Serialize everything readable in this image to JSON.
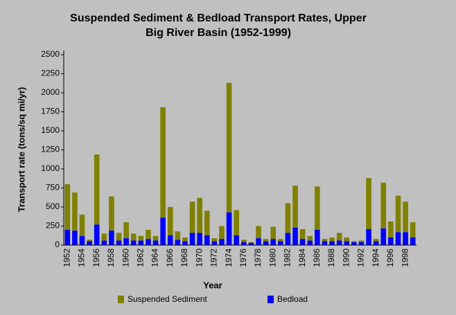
{
  "chart_data": {
    "type": "stacked_bar",
    "title": [
      "Suspended Sediment & Bedload Transport Rates, Upper",
      "Big River Basin (1952-1999)"
    ],
    "x_label": "Year",
    "y_label": "Transport rate (tons/sq mi/yr)",
    "categories": [
      "1952",
      null,
      "1954",
      null,
      "1956",
      null,
      "1958",
      null,
      "1960",
      null,
      "1962",
      null,
      "1964",
      null,
      "1966",
      null,
      "1968",
      null,
      "1970",
      null,
      "1972",
      null,
      "1974",
      null,
      "1976",
      null,
      "1978",
      null,
      "1980",
      null,
      "1982",
      null,
      "1984",
      null,
      "1986",
      null,
      "1988",
      null,
      "1990",
      null,
      "1992",
      null,
      "1994",
      null,
      "1996",
      null,
      "1998",
      null
    ],
    "series": [
      {
        "name": "Suspended Sediment",
        "color": "#808000",
        "values": [
          600,
          500,
          280,
          20,
          920,
          90,
          450,
          100,
          210,
          90,
          60,
          120,
          60,
          1450,
          370,
          110,
          50,
          410,
          460,
          320,
          40,
          170,
          1700,
          330,
          30,
          10,
          160,
          30,
          160,
          30,
          390,
          550,
          130,
          60,
          570,
          30,
          50,
          100,
          50,
          10,
          20,
          670,
          30,
          600,
          210,
          480,
          400,
          200
        ]
      },
      {
        "name": "Bedload",
        "color": "#0000ff",
        "values": [
          200,
          190,
          120,
          50,
          270,
          60,
          190,
          60,
          90,
          60,
          60,
          80,
          60,
          360,
          130,
          70,
          50,
          160,
          160,
          130,
          50,
          80,
          430,
          130,
          40,
          30,
          90,
          50,
          80,
          50,
          160,
          230,
          80,
          60,
          200,
          50,
          50,
          60,
          50,
          40,
          40,
          210,
          50,
          220,
          100,
          170,
          170,
          100
        ]
      }
    ],
    "stack_order": [
      "Bedload",
      "Suspended Sediment"
    ],
    "ylim": [
      0,
      2500
    ],
    "yticks": [
      0,
      250,
      500,
      750,
      1000,
      1250,
      1500,
      1750,
      2000,
      2250,
      2500
    ],
    "grid": false
  }
}
